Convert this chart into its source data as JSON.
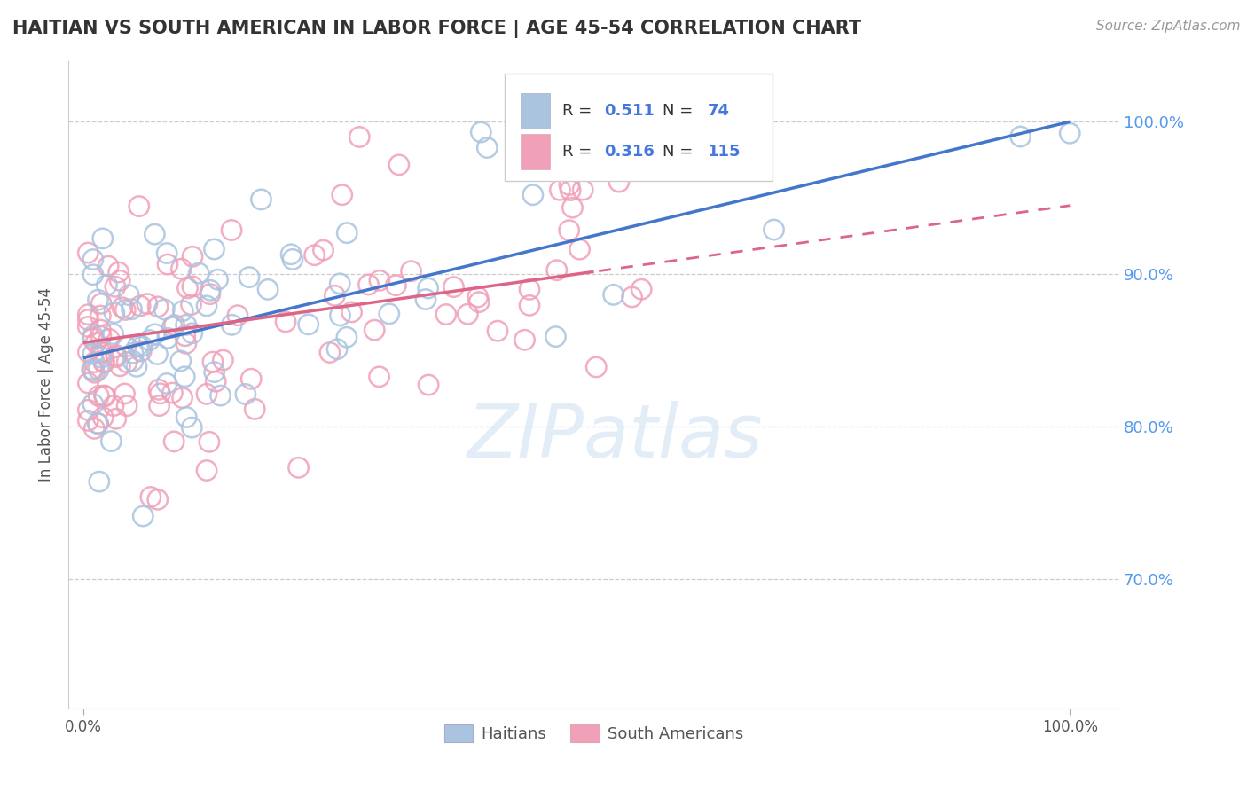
{
  "title": "HAITIAN VS SOUTH AMERICAN IN LABOR FORCE | AGE 45-54 CORRELATION CHART",
  "source": "Source: ZipAtlas.com",
  "ylabel": "In Labor Force | Age 45-54",
  "r_haitian": 0.511,
  "n_haitian": 74,
  "r_south_american": 0.316,
  "n_south_american": 115,
  "color_haitian": "#aac4e0",
  "color_south_american": "#f0a0b8",
  "color_haitian_line": "#4477cc",
  "color_south_american_line": "#dd6688",
  "ytick_values": [
    0.7,
    0.8,
    0.9,
    1.0
  ],
  "ytick_labels": [
    "70.0%",
    "80.0%",
    "90.0%",
    "100.0%"
  ],
  "ylim_low": 0.615,
  "ylim_high": 1.04,
  "xlim_low": -0.015,
  "xlim_high": 1.05,
  "haitian_line_x0": 0.0,
  "haitian_line_y0": 0.845,
  "haitian_line_x1": 1.0,
  "haitian_line_y1": 1.0,
  "sa_line_x0": 0.0,
  "sa_line_y0": 0.855,
  "sa_line_x1": 1.0,
  "sa_line_y1": 0.945,
  "sa_line_solid_end": 0.52,
  "watermark_text": "ZIPatlas",
  "legend_r1": "R = ",
  "legend_v1": "0.511",
  "legend_n1": "N = ",
  "legend_nv1": "74",
  "legend_r2": "R = ",
  "legend_v2": "0.316",
  "legend_n2": "N = ",
  "legend_nv2": "115"
}
